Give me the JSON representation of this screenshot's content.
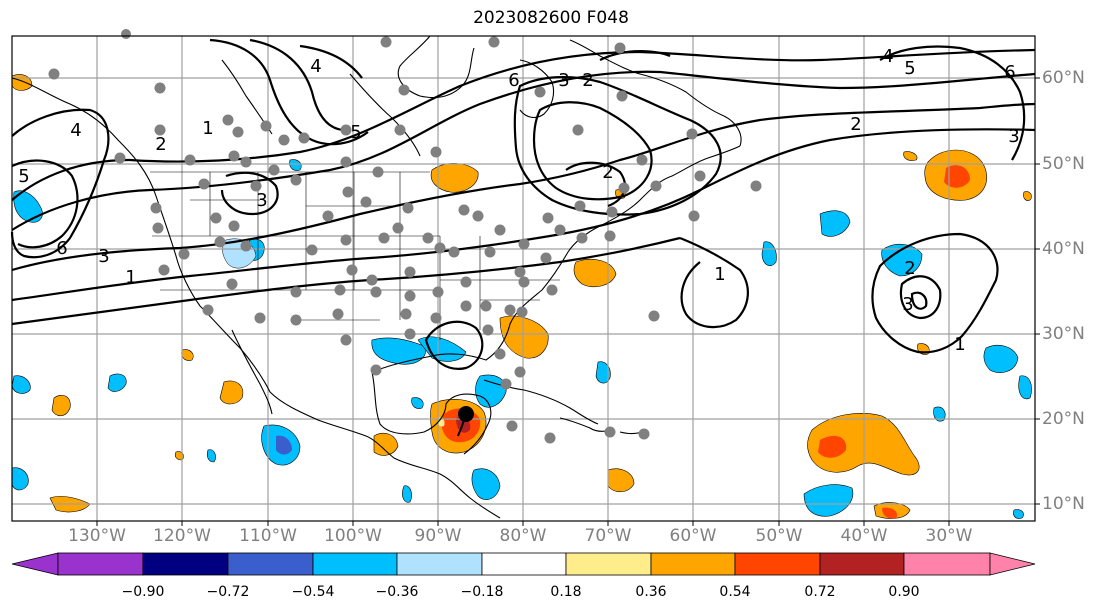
{
  "title": "2023082600 F048",
  "longitude_labels": [
    "130°W",
    "120°W",
    "110°W",
    "100°W",
    "90°W",
    "80°W",
    "70°W",
    "60°W",
    "50°W",
    "40°W",
    "30°W"
  ],
  "latitude_labels": [
    "60°N",
    "50°N",
    "40°N",
    "30°N",
    "20°N",
    "10°N"
  ],
  "colorbar": {
    "ticks": [
      "−0.90",
      "−0.72",
      "−0.54",
      "−0.36",
      "−0.18",
      "0.18",
      "0.36",
      "0.54",
      "0.72",
      "0.90"
    ],
    "colors": [
      "#9a32cd",
      "#000080",
      "#3a5fcd",
      "#00bfff",
      "#b0e2ff",
      "#ffffff",
      "#ffec8b",
      "#ffa500",
      "#ff4500",
      "#b22222",
      "#ff82ab"
    ]
  },
  "contour_labels": [
    "1",
    "2",
    "3",
    "4",
    "5",
    "6",
    "1",
    "2",
    "3",
    "4",
    "5",
    "6",
    "2",
    "3",
    "1",
    "2",
    "3",
    "1",
    "2",
    "3",
    "4",
    "5",
    "6"
  ],
  "storm_marker": {
    "lon": "87°W",
    "lat": "20°N"
  }
}
